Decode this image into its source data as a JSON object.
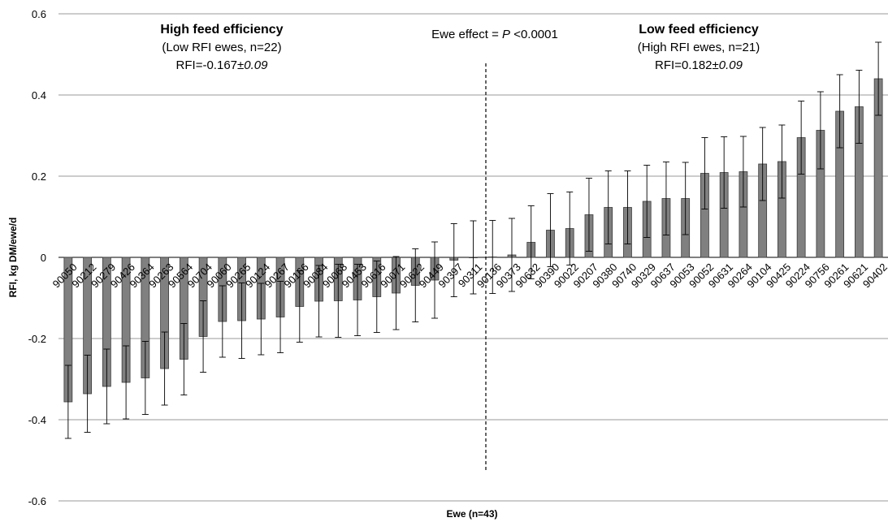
{
  "chart_data": {
    "type": "bar",
    "xlabel": "Ewe (n=43)",
    "ylabel": "RFI, kg DM/ewe/d",
    "ylim": [
      -0.6,
      0.6
    ],
    "yticks": [
      "0.6",
      "0.4",
      "0.2",
      "0",
      "-0.2",
      "-0.4",
      "-0.6"
    ],
    "grid": true,
    "bar_color": "#808080",
    "categories": [
      "90050",
      "90212",
      "90279",
      "90426",
      "90364",
      "90263",
      "90564",
      "90704",
      "90060",
      "90265",
      "90124",
      "90267",
      "90166",
      "90084",
      "90068",
      "90453",
      "90616",
      "90071",
      "90622",
      "90449",
      "90397",
      "90311",
      "90136",
      "90373",
      "90632",
      "90390",
      "90022",
      "90207",
      "90380",
      "90740",
      "90329",
      "90637",
      "90053",
      "90052",
      "90631",
      "90264",
      "90104",
      "90425",
      "90224",
      "90756",
      "90261",
      "90621",
      "90402"
    ],
    "values": [
      -0.356,
      -0.336,
      -0.318,
      -0.308,
      -0.297,
      -0.274,
      -0.251,
      -0.195,
      -0.158,
      -0.156,
      -0.152,
      -0.147,
      -0.121,
      -0.108,
      -0.107,
      -0.105,
      -0.097,
      -0.088,
      -0.069,
      -0.056,
      -0.007,
      0.0,
      0.001,
      0.006,
      0.037,
      0.067,
      0.071,
      0.105,
      0.123,
      0.123,
      0.138,
      0.145,
      0.145,
      0.207,
      0.209,
      0.211,
      0.23,
      0.236,
      0.295,
      0.313,
      0.36,
      0.371,
      0.44
    ],
    "errors": [
      0.09,
      0.095,
      0.092,
      0.09,
      0.09,
      0.09,
      0.088,
      0.088,
      0.088,
      0.093,
      0.088,
      0.088,
      0.088,
      0.088,
      0.09,
      0.088,
      0.088,
      0.09,
      0.09,
      0.094,
      0.09,
      0.09,
      0.09,
      0.09,
      0.09,
      0.09,
      0.09,
      0.09,
      0.09,
      0.09,
      0.089,
      0.09,
      0.089,
      0.088,
      0.088,
      0.087,
      0.09,
      0.09,
      0.09,
      0.095,
      0.09,
      0.09,
      0.09
    ],
    "annotations": {
      "left_title": "High feed efficiency",
      "left_sub": "(Low RFI ewes, n=22)",
      "left_rfi_prefix": "RFI=-0.167±",
      "left_rfi_sd": "0.09",
      "center_prefix": "Ewe effect = ",
      "center_p": "P",
      "center_suffix": " <0.0001",
      "right_title": "Low feed efficiency",
      "right_sub": "(High RFI ewes, n=21)",
      "right_rfi_prefix": "RFI=0.182±",
      "right_rfi_sd": "0.09"
    }
  }
}
